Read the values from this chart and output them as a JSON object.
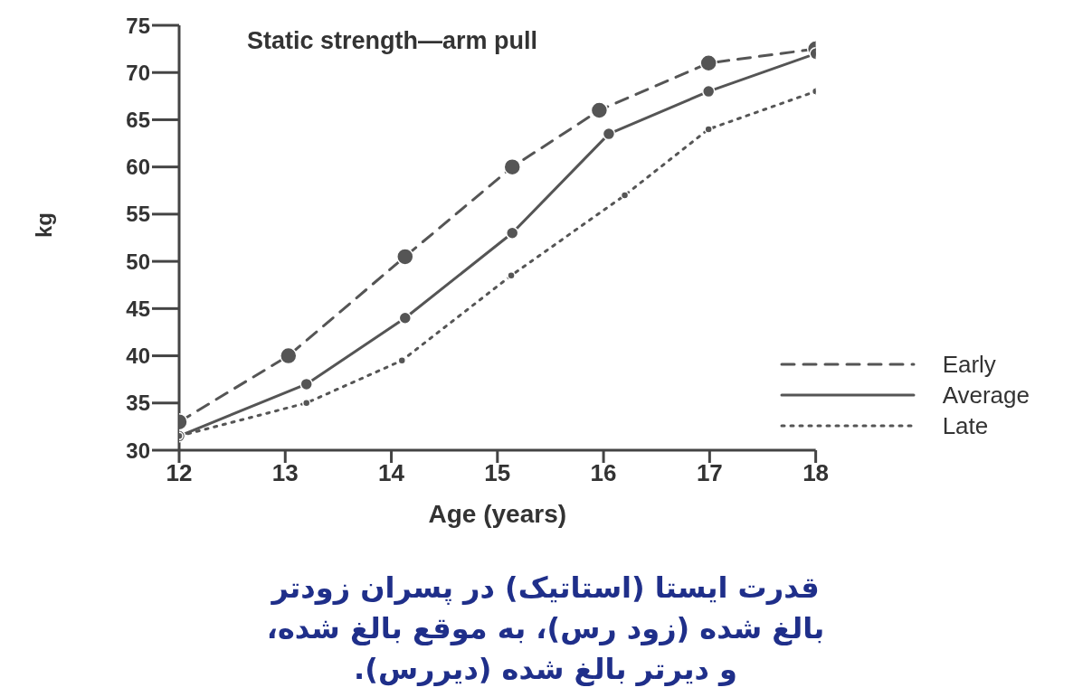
{
  "chart_data": {
    "type": "line",
    "title": "Static strength—arm pull",
    "xlabel": "Age (years)",
    "ylabel": "kg",
    "xlim": [
      12,
      18
    ],
    "xticks": [
      12,
      13,
      14,
      15,
      16,
      17,
      18
    ],
    "ylim": [
      30,
      75
    ],
    "yticks": [
      30,
      35,
      40,
      45,
      50,
      55,
      60,
      65,
      70,
      75
    ],
    "grid": false,
    "legend": "bottom right",
    "marker": "circle",
    "series": [
      {
        "name": "Early",
        "color": "#555555",
        "line_style": "dashed",
        "x": [
          12,
          13.03,
          14.13,
          15.14,
          15.96,
          16.99,
          18
        ],
        "values": [
          33,
          40,
          50.5,
          60,
          66,
          71,
          72.5
        ]
      },
      {
        "name": "Average",
        "color": "#555555",
        "line_style": "solid",
        "x": [
          12,
          13.2,
          14.13,
          15.14,
          16.05,
          16.99,
          18
        ],
        "values": [
          31.5,
          37,
          44,
          53,
          63.5,
          68,
          72
        ]
      },
      {
        "name": "Late",
        "color": "#555555",
        "line_style": "dotted",
        "x": [
          12,
          13.2,
          14.1,
          15.13,
          16.2,
          16.99,
          18
        ],
        "values": [
          31.5,
          35,
          39.5,
          48.5,
          57,
          64,
          68
        ]
      }
    ],
    "annotations": [
      "قدرت ایستا (استاتیک) در پسران زودتر بالغ شده (زود رس)، به موقع بالغ شده، و دیرتر بالغ شده (دیررس)."
    ]
  }
}
